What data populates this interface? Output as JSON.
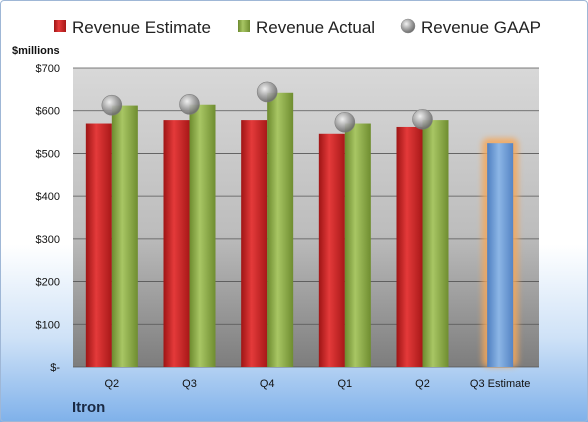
{
  "chart_data": {
    "type": "bar",
    "title": "",
    "ylabel": "$millions",
    "company": "Itron",
    "categories": [
      "Q2",
      "Q3",
      "Q4",
      "Q1",
      "Q2",
      "Q3 Estimate"
    ],
    "ylim": [
      0,
      700
    ],
    "yticks": [
      0,
      100,
      200,
      300,
      400,
      500,
      600,
      700
    ],
    "ytick_labels": [
      "$-",
      "$100",
      "$200",
      "$300",
      "$400",
      "$500",
      "$600",
      "$700"
    ],
    "grid": true,
    "legend_position": "top",
    "series": [
      {
        "name": "Revenue Estimate",
        "type": "bar",
        "color": "#cc2a2a",
        "values": [
          570,
          578,
          578,
          546,
          562,
          null
        ]
      },
      {
        "name": "Revenue Actual",
        "type": "bar",
        "color": "#8fb04a",
        "values": [
          612,
          614,
          642,
          570,
          578,
          null
        ]
      },
      {
        "name": "Revenue GAAP",
        "type": "marker",
        "color": "#9a9a9a",
        "values": [
          613,
          615,
          644,
          573,
          580,
          null
        ]
      }
    ],
    "estimate_bar": {
      "category_index": 5,
      "value": 524,
      "color": "#6f9ed8",
      "glow_color": "#f5a75a"
    }
  }
}
